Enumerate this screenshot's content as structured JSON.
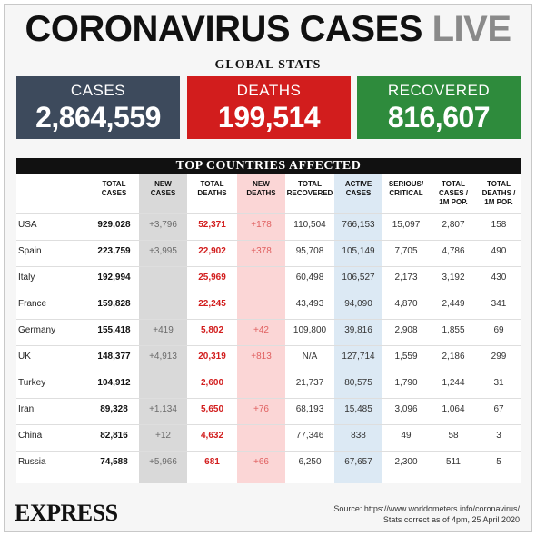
{
  "title": {
    "main": "CORONAVIRUS CASES",
    "live": "LIVE"
  },
  "global": {
    "heading": "GLOBAL STATS",
    "cases": {
      "label": "CASES",
      "value": "2,864,559",
      "color": "#3d4a5c"
    },
    "deaths": {
      "label": "DEATHS",
      "value": "199,514",
      "color": "#d21d1d"
    },
    "recovered": {
      "label": "RECOVERED",
      "value": "816,607",
      "color": "#2e8b3c"
    }
  },
  "table": {
    "heading": "TOP COUNTRIES AFFECTED",
    "headers": [
      [
        "",
        ""
      ],
      [
        "TOTAL",
        "CASES"
      ],
      [
        "NEW",
        "CASES"
      ],
      [
        "TOTAL",
        "DEATHS"
      ],
      [
        "NEW",
        "DEATHS"
      ],
      [
        "TOTAL",
        "RECOVERED"
      ],
      [
        "ACTIVE",
        "CASES"
      ],
      [
        "SERIOUS/",
        "CRITICAL"
      ],
      [
        "TOTAL",
        "CASES /",
        "1M POP."
      ],
      [
        "TOTAL",
        "DEATHS /",
        "1M POP."
      ]
    ],
    "rows": [
      [
        "USA",
        "929,028",
        "+3,796",
        "52,371",
        "+178",
        "110,504",
        "766,153",
        "15,097",
        "2,807",
        "158"
      ],
      [
        "Spain",
        "223,759",
        "+3,995",
        "22,902",
        "+378",
        "95,708",
        "105,149",
        "7,705",
        "4,786",
        "490"
      ],
      [
        "Italy",
        "192,994",
        "",
        "25,969",
        "",
        "60,498",
        "106,527",
        "2,173",
        "3,192",
        "430"
      ],
      [
        "France",
        "159,828",
        "",
        "22,245",
        "",
        "43,493",
        "94,090",
        "4,870",
        "2,449",
        "341"
      ],
      [
        "Germany",
        "155,418",
        "+419",
        "5,802",
        "+42",
        "109,800",
        "39,816",
        "2,908",
        "1,855",
        "69"
      ],
      [
        "UK",
        "148,377",
        "+4,913",
        "20,319",
        "+813",
        "N/A",
        "127,714",
        "1,559",
        "2,186",
        "299"
      ],
      [
        "Turkey",
        "104,912",
        "",
        "2,600",
        "",
        "21,737",
        "80,575",
        "1,790",
        "1,244",
        "31"
      ],
      [
        "Iran",
        "89,328",
        "+1,134",
        "5,650",
        "+76",
        "68,193",
        "15,485",
        "3,096",
        "1,064",
        "67"
      ],
      [
        "China",
        "82,816",
        "+12",
        "4,632",
        "",
        "77,346",
        "838",
        "49",
        "58",
        "3"
      ],
      [
        "Russia",
        "74,588",
        "+5,966",
        "681",
        "+66",
        "6,250",
        "67,657",
        "2,300",
        "511",
        "5"
      ]
    ]
  },
  "footer": {
    "logo": "EXPRESS",
    "source_line1": "Source: https://www.worldometers.info/coronavirus/",
    "source_line2": "Stats correct as of 4pm, 25 April 2020"
  }
}
